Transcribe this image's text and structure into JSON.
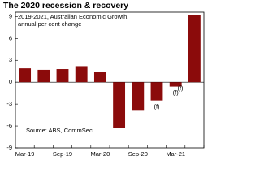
{
  "chart_data": {
    "type": "bar",
    "title": "The 2020 recession & recovery",
    "subtitle": [
      "2019-2021, Australian Economic Growth,",
      "annual per cent change"
    ],
    "categories": [
      "Mar-19",
      null,
      "Sep-19",
      null,
      "Mar-20",
      null,
      "Sep-20",
      null,
      "Mar-21",
      null
    ],
    "values": [
      1.9,
      1.7,
      1.8,
      2.2,
      1.4,
      -6.3,
      -3.8,
      -2.5,
      -0.6,
      9.2
    ],
    "color": "#8b0b0b",
    "ylim": [
      -9,
      9.6
    ],
    "yticks": [
      -9,
      -6,
      -3,
      0,
      3,
      6,
      9
    ],
    "annotations": [
      "(f)",
      "(f)",
      "(f)"
    ],
    "source": "Source: ABS, CommSec"
  }
}
